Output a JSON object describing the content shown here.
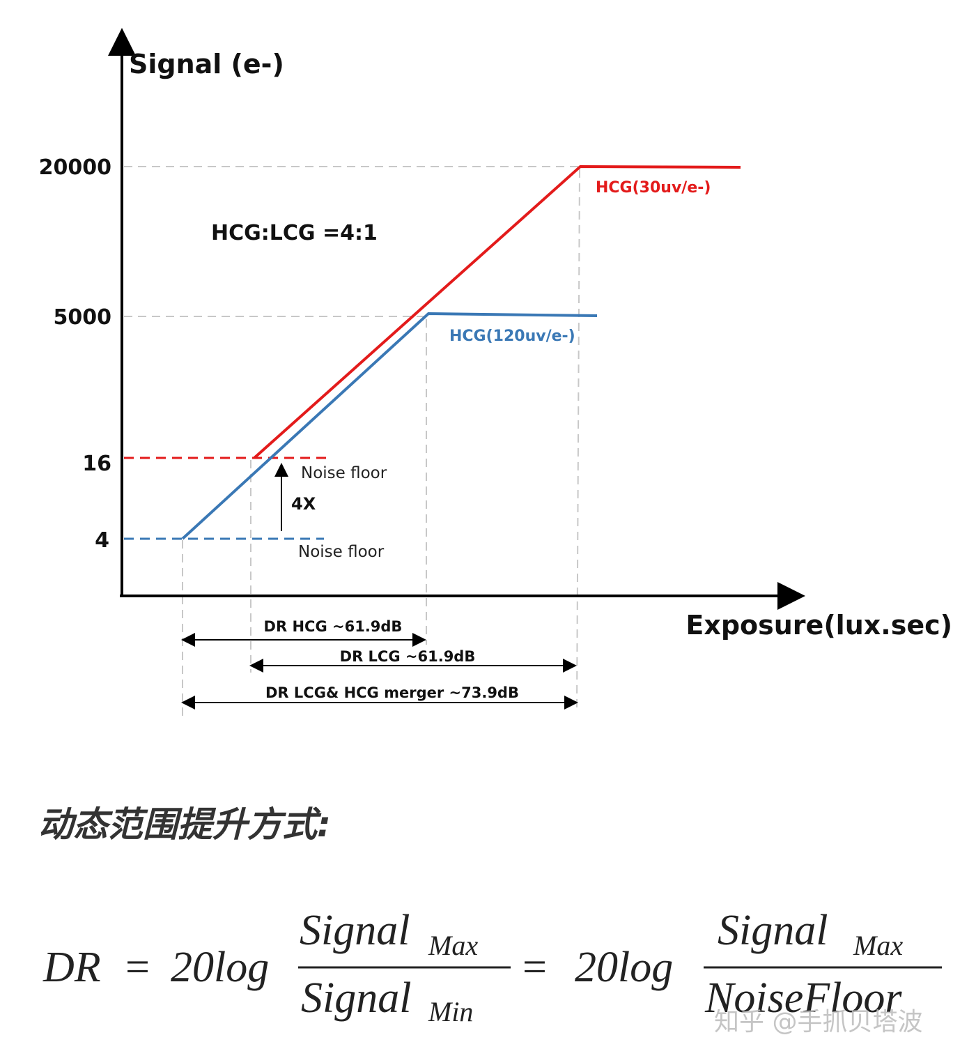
{
  "diagram": {
    "y_axis_label": "Signal (e-)",
    "x_axis_label": "Exposure(lux.sec)",
    "y_levels": [
      "20000",
      "5000",
      "16",
      "4"
    ],
    "ratio_note": "HCG:LCG =4:1",
    "curves": [
      {
        "label": "HCG(30uv/e-)",
        "color": "#e31b1b"
      },
      {
        "label": "HCG(120uv/e-)",
        "color": "#3a78b5"
      }
    ],
    "noise_floor_labels": [
      "Noise floor",
      "Noise floor"
    ],
    "gain_label": "4X",
    "ranges": [
      "DR HCG ~61.9dB",
      "DR LCG ~61.9dB",
      "DR LCG& HCG merger ~73.9dB"
    ]
  },
  "heading": "动态范围提升方式:",
  "formula": {
    "lhs": "DR",
    "operator": "=",
    "coefficient": "20log",
    "terms": [
      {
        "numerator": "Signal",
        "numerator_sub": "Max",
        "denominator": "Signal",
        "denominator_sub": "Min"
      },
      {
        "numerator": "Signal",
        "numerator_sub": "Max",
        "denominator": "NoiseFloor"
      }
    ]
  },
  "watermark": "知乎 @手抓贝塔波"
}
